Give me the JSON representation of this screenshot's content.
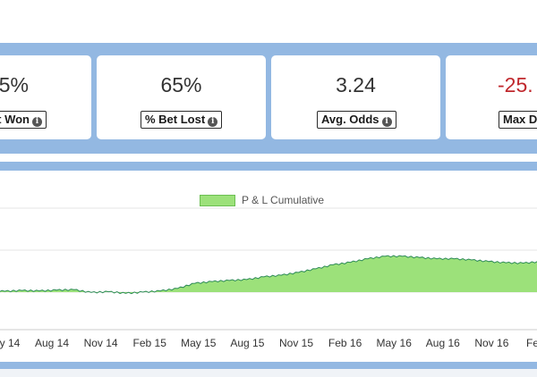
{
  "stats": [
    {
      "value": "5%",
      "label": "t Won",
      "negative": false
    },
    {
      "value": "65%",
      "label": "% Bet Lost",
      "negative": false
    },
    {
      "value": "3.24",
      "label": "Avg. Odds",
      "negative": false
    },
    {
      "value": "-25.",
      "label": "Max D",
      "negative": true
    }
  ],
  "chart_data": {
    "type": "area",
    "legend": [
      "P & L Cumulative"
    ],
    "legend_placement": "top-center",
    "x_tick_labels": [
      "y 14",
      "Aug 14",
      "Nov 14",
      "Feb 15",
      "May 15",
      "Aug 15",
      "Nov 15",
      "Feb 16",
      "May 16",
      "Aug 16",
      "Nov 16",
      "Fe"
    ],
    "series": [
      {
        "name": "P & L Cumulative",
        "color": "#9ce17a",
        "line_color": "#2e8b57",
        "x": [
          "May 14",
          "Jun 14",
          "Jul 14",
          "Aug 14",
          "Sep 14",
          "Oct 14",
          "Nov 14",
          "Dec 14",
          "Jan 15",
          "Feb 15",
          "Mar 15",
          "Apr 15",
          "May 15",
          "Jun 15",
          "Jul 15",
          "Aug 15",
          "Sep 15",
          "Oct 15",
          "Nov 15",
          "Dec 15",
          "Jan 16",
          "Feb 16",
          "Mar 16",
          "Apr 16",
          "May 16",
          "Jun 16",
          "Jul 16",
          "Aug 16",
          "Sep 16",
          "Oct 16",
          "Nov 16",
          "Dec 16",
          "Jan 17"
        ],
        "values": [
          0.3,
          0.2,
          0.4,
          0.3,
          0.5,
          0.6,
          -0.1,
          0.1,
          -0.3,
          0.0,
          0.3,
          0.9,
          2.2,
          2.6,
          2.9,
          3.1,
          3.8,
          4.2,
          4.9,
          5.8,
          6.8,
          7.4,
          8.3,
          8.9,
          8.9,
          8.6,
          8.3,
          8.3,
          8.0,
          7.6,
          7.3,
          7.2,
          7.6
        ]
      }
    ],
    "grid": "horizontal"
  },
  "colors": {
    "band": "#93b8e2",
    "negative": "#c0282d"
  },
  "icons": {
    "info": "info-circle-icon"
  }
}
